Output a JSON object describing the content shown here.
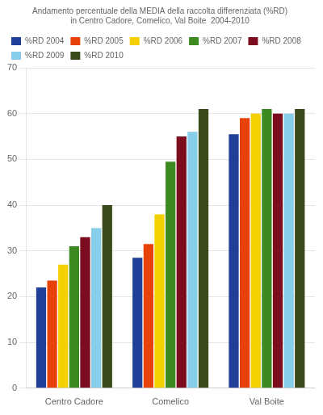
{
  "chart_data": {
    "type": "bar",
    "title": "Andamento percentuale della MEDIA della raccolta differenziata (%RD)\nin Centro Cadore, Comelico, Val Boite  2004-2010",
    "categories": [
      "Centro Cadore",
      "Comelico",
      "Val Boite"
    ],
    "series": [
      {
        "name": "%RD 2004",
        "color": "#1F3F99",
        "values": [
          22,
          28.5,
          55.5
        ]
      },
      {
        "name": "%RD 2005",
        "color": "#E8420A",
        "values": [
          23.5,
          31.5,
          59
        ]
      },
      {
        "name": "%RD 2006",
        "color": "#F5D000",
        "values": [
          27,
          38,
          60
        ]
      },
      {
        "name": "%RD 2007",
        "color": "#3D8A20",
        "values": [
          31,
          49.5,
          61
        ]
      },
      {
        "name": "%RD 2008",
        "color": "#7B0D1E",
        "values": [
          33,
          55,
          60
        ]
      },
      {
        "name": "%RD 2009",
        "color": "#87CEEB",
        "values": [
          35,
          56,
          60
        ]
      },
      {
        "name": "%RD 2010",
        "color": "#3B4A1A",
        "values": [
          40,
          61,
          61
        ]
      }
    ],
    "ylim": [
      0,
      70
    ],
    "yticks": [
      0,
      10,
      20,
      30,
      40,
      50,
      60,
      70
    ],
    "grid": true,
    "legend": "upper left"
  }
}
